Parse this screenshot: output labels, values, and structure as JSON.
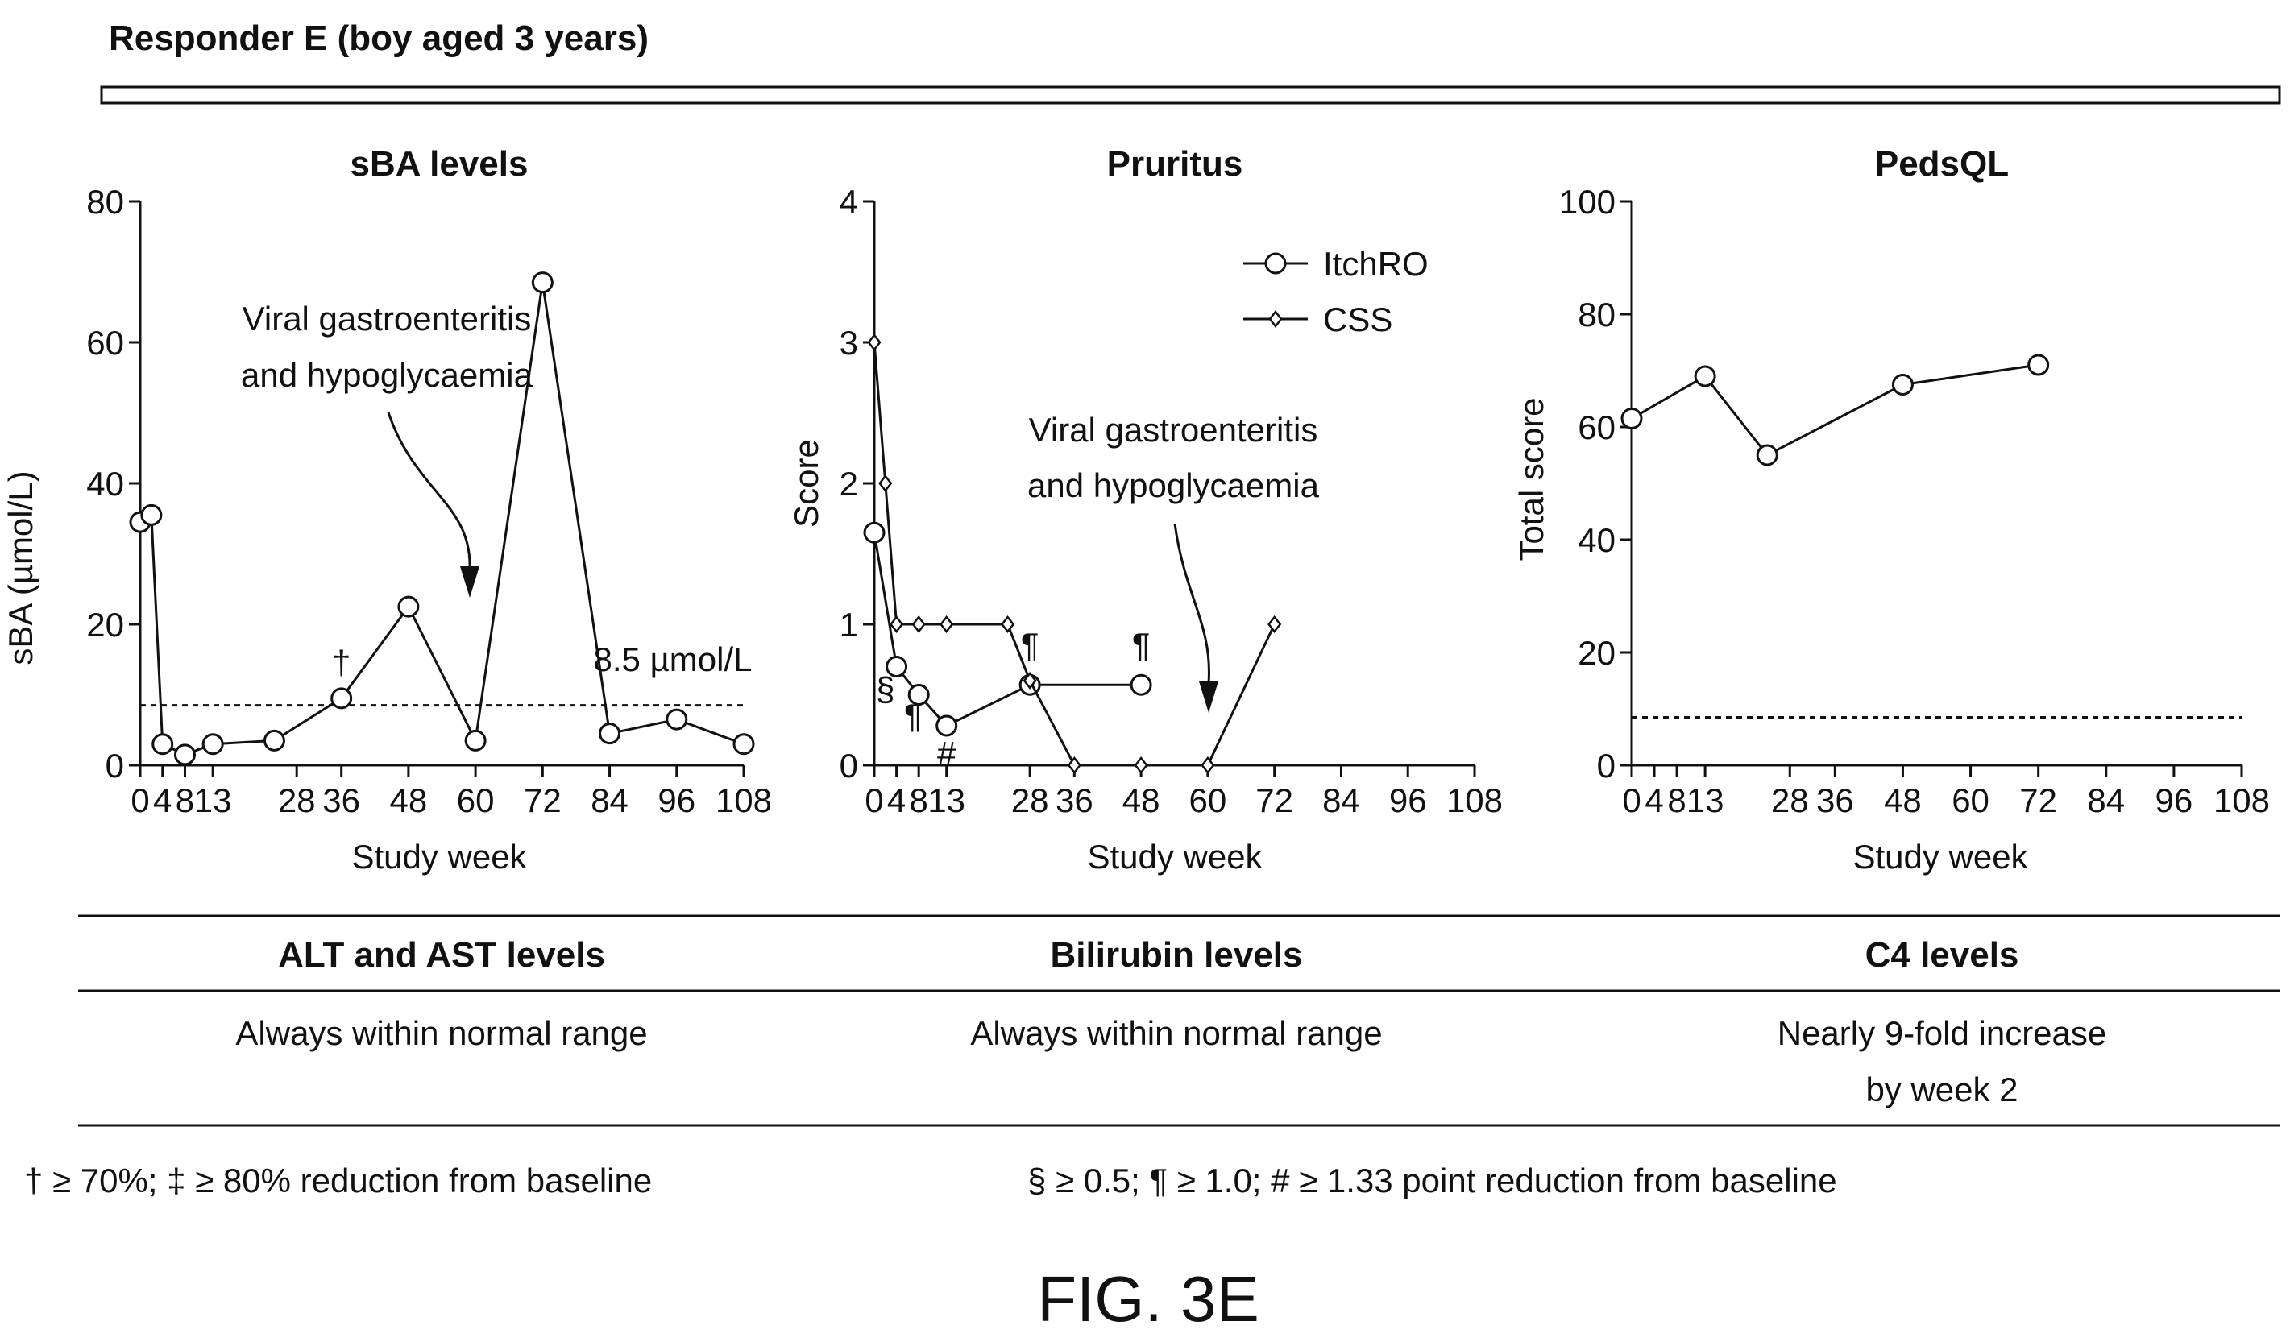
{
  "figure": {
    "header": "Responder E (boy aged 3 years)",
    "fig_label": "FIG. 3E"
  },
  "chart_data": [
    {
      "type": "line",
      "title": "sBA levels",
      "xlabel": "Study week",
      "ylabel": "sBA (µmol/L)",
      "xlim": [
        0,
        108
      ],
      "ylim": [
        0,
        80
      ],
      "x_ticks": [
        0,
        4,
        8,
        13,
        28,
        36,
        48,
        60,
        72,
        84,
        96,
        108
      ],
      "y_ticks": [
        0,
        20,
        40,
        60,
        80
      ],
      "series": [
        {
          "marker": "circle",
          "x": [
            0,
            2,
            4,
            8,
            13,
            24,
            36,
            48,
            60,
            72,
            84,
            96,
            108
          ],
          "y": [
            34.5,
            35.5,
            3,
            1.5,
            3,
            3.5,
            9.5,
            22.5,
            3.5,
            68.5,
            4.5,
            6.5,
            3
          ]
        }
      ],
      "reference_line": {
        "y": 8.5,
        "label": "8.5 µmol/L",
        "style": "dashed"
      },
      "annotations": [
        {
          "text": "†",
          "x": 36,
          "y": 9.5
        },
        {
          "text": "Viral gastroenteritis",
          "line2": "and hypoglycaemia",
          "points_to_x": 60
        }
      ]
    },
    {
      "type": "line",
      "title": "Pruritus",
      "xlabel": "Study week",
      "ylabel": "Score",
      "xlim": [
        0,
        108
      ],
      "ylim": [
        0,
        4
      ],
      "x_ticks": [
        0,
        4,
        8,
        13,
        28,
        36,
        48,
        60,
        72,
        84,
        96,
        108
      ],
      "y_ticks": [
        0,
        1,
        2,
        3,
        4
      ],
      "legend_position": "top-right",
      "series": [
        {
          "name": "ItchRO",
          "marker": "circle",
          "x": [
            0,
            4,
            8,
            13,
            28,
            48
          ],
          "y": [
            1.65,
            0.7,
            0.5,
            0.28,
            0.57,
            0.57
          ]
        },
        {
          "name": "CSS",
          "marker": "diamond",
          "x": [
            0,
            2,
            4,
            8,
            13,
            24,
            28,
            36,
            48,
            60,
            72
          ],
          "y": [
            3,
            2,
            1,
            1,
            1,
            1,
            0.6,
            0,
            0,
            0,
            1
          ]
        }
      ],
      "annotations": [
        {
          "text": "§",
          "x": 2
        },
        {
          "text": "¶",
          "x": 7
        },
        {
          "text": "#",
          "x": 13
        },
        {
          "text": "¶",
          "x": 28
        },
        {
          "text": "¶",
          "x": 48
        },
        {
          "text": "Viral gastroenteritis",
          "line2": "and hypoglycaemia",
          "points_to_x": 60
        }
      ]
    },
    {
      "type": "line",
      "title": "PedsQL",
      "xlabel": "Study week",
      "ylabel": "Total score",
      "xlim": [
        0,
        108
      ],
      "ylim": [
        0,
        100
      ],
      "x_ticks": [
        0,
        4,
        8,
        13,
        28,
        36,
        48,
        60,
        72,
        84,
        96,
        108
      ],
      "y_ticks": [
        0,
        20,
        40,
        60,
        80,
        100
      ],
      "series": [
        {
          "marker": "circle",
          "x": [
            0,
            13,
            24,
            48,
            72
          ],
          "y": [
            61.5,
            69,
            55,
            67.5,
            71
          ]
        }
      ],
      "reference_line": {
        "y": 8.5,
        "style": "dashed"
      }
    }
  ],
  "table": {
    "headers": [
      "ALT and AST levels",
      "Bilirubin levels",
      "C4 levels"
    ],
    "rows": [
      [
        "Always within normal range",
        "Always within normal range",
        "Nearly 9-fold increase",
        "by week 2"
      ]
    ]
  },
  "footnotes": {
    "left": "† ≥ 70%; ‡ ≥ 80% reduction from baseline",
    "right": "§ ≥ 0.5; ¶ ≥ 1.0; # ≥ 1.33 point reduction from baseline"
  }
}
